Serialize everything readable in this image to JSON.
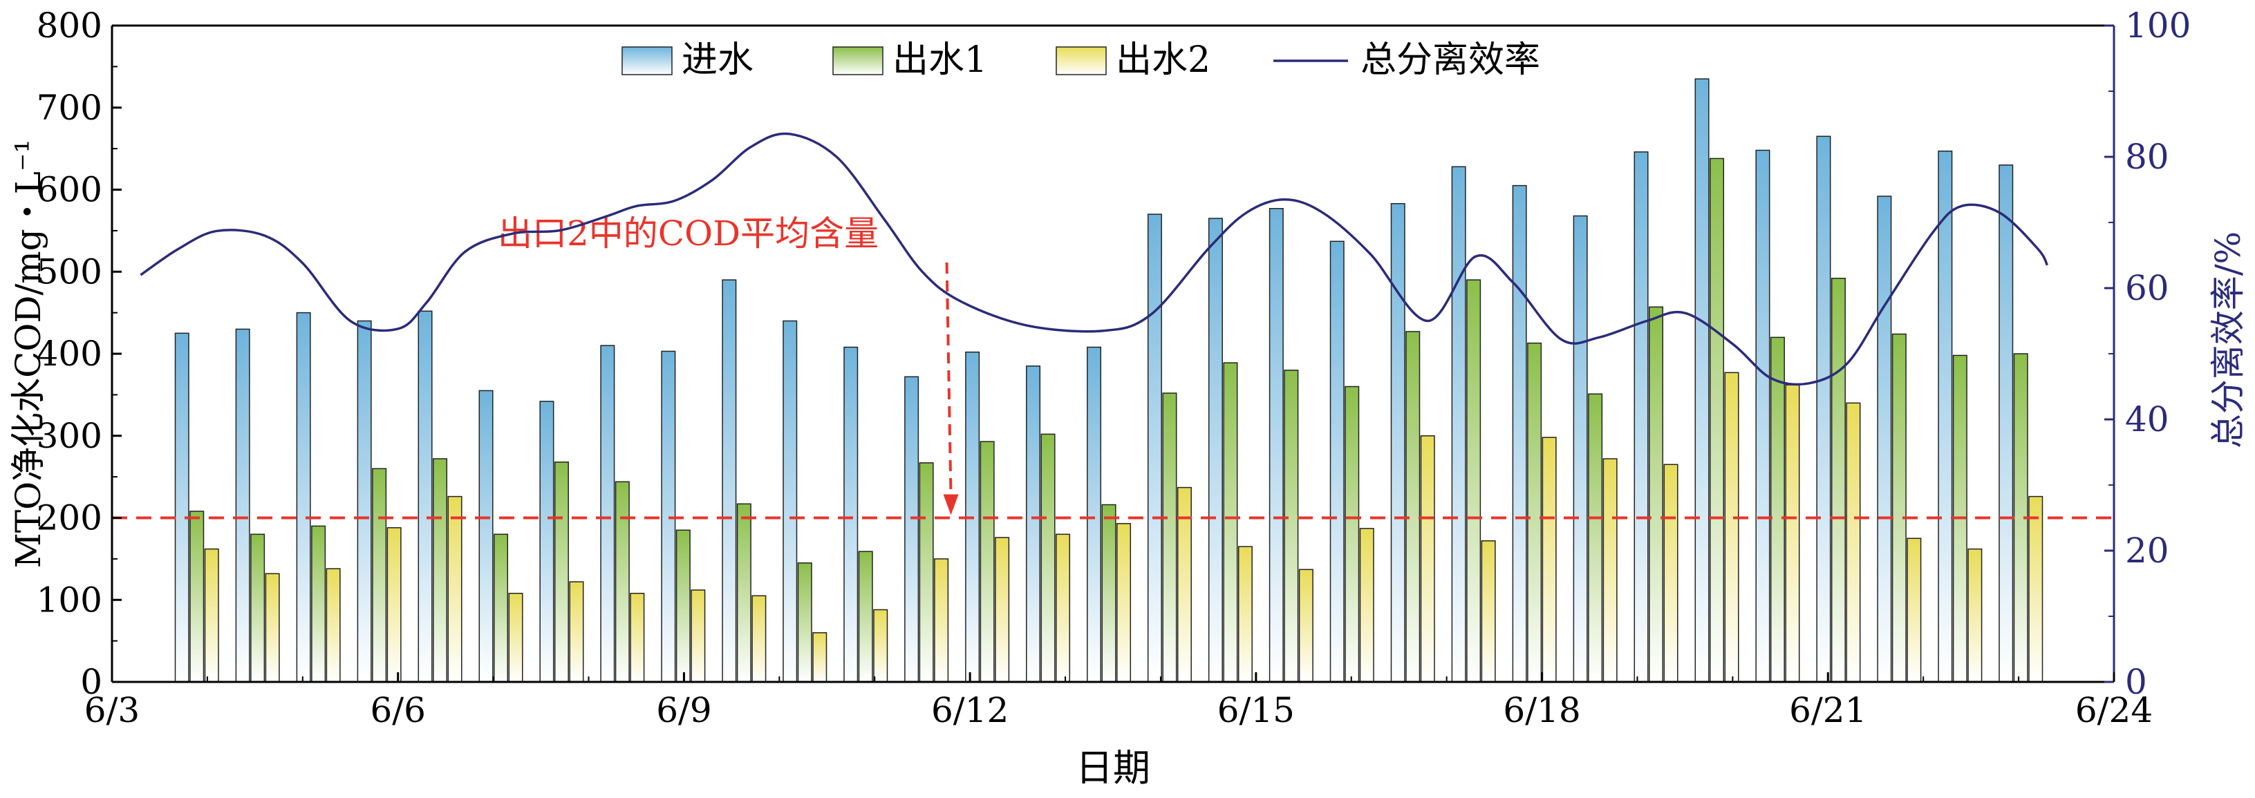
{
  "chart_data": {
    "type": "bar",
    "x_tick_labels": [
      "6/3",
      "6/6",
      "6/9",
      "6/12",
      "6/15",
      "6/18",
      "6/21",
      "6/24"
    ],
    "xlabel": "日期",
    "ylabel_left": "MTO净化水COD/mg・L⁻¹",
    "ylabel_right": "总分离效率/%",
    "ylim_left": [
      0,
      800
    ],
    "yticks_left": [
      "0",
      "100",
      "200",
      "300",
      "400",
      "500",
      "600",
      "700",
      "800"
    ],
    "ylim_right": [
      0,
      100
    ],
    "yticks_right": [
      "0",
      "20",
      "40",
      "60",
      "80",
      "100"
    ],
    "grid": false,
    "legend_position": "top",
    "series": [
      {
        "name": "进水",
        "color_top": "#6fb4dc",
        "color_bottom": "#ffffff",
        "values": [
          425,
          430,
          450,
          440,
          452,
          355,
          342,
          410,
          403,
          490,
          440,
          408,
          372,
          402,
          385,
          408,
          570,
          565,
          577,
          537,
          583,
          628,
          605,
          568,
          646,
          735,
          648,
          665,
          592,
          647,
          630
        ]
      },
      {
        "name": "出水1",
        "color_top": "#8cbf4a",
        "color_bottom": "#ffffff",
        "values": [
          208,
          180,
          190,
          260,
          272,
          180,
          268,
          244,
          185,
          217,
          145,
          159,
          267,
          293,
          302,
          216,
          352,
          389,
          380,
          360,
          427,
          490,
          413,
          351,
          457,
          638,
          420,
          492,
          424,
          398,
          400
        ]
      },
      {
        "name": "出水2",
        "color_top": "#e9dc58",
        "color_bottom": "#ffffff",
        "values": [
          162,
          132,
          138,
          188,
          226,
          108,
          122,
          108,
          112,
          105,
          60,
          88,
          150,
          176,
          180,
          193,
          237,
          165,
          137,
          187,
          300,
          172,
          298,
          272,
          265,
          377,
          362,
          340,
          175,
          162,
          226
        ]
      },
      {
        "name": "总分离效率",
        "type": "line",
        "axis": "right",
        "color": "#2b2b7a",
        "x": [
          3.3,
          3.7,
          4.1,
          4.6,
          5.0,
          5.5,
          6.0,
          6.3,
          6.7,
          7.2,
          7.7,
          8.2,
          8.5,
          8.9,
          9.3,
          9.7,
          10.1,
          10.6,
          11.1,
          11.5,
          11.9,
          12.6,
          13.4,
          13.9,
          14.5,
          14.9,
          15.3,
          15.7,
          16.2,
          16.8,
          17.3,
          17.7,
          18.2,
          18.6,
          19.1,
          19.5,
          20.0,
          20.4,
          20.8,
          21.2,
          21.6,
          22.1,
          22.4,
          22.8,
          23.2,
          23.3
        ],
        "values": [
          62,
          66,
          68.7,
          68,
          63.8,
          55,
          53.8,
          57.8,
          65.5,
          68.3,
          68.8,
          71,
          72.5,
          73.3,
          76.5,
          81.5,
          83.5,
          80,
          70.5,
          62.5,
          58,
          54.3,
          53.5,
          56,
          66,
          71.5,
          73.5,
          71.5,
          65.2,
          55,
          64.8,
          60.8,
          52.2,
          52.5,
          55,
          56.2,
          51.5,
          46.3,
          45.5,
          48.5,
          57.5,
          68.5,
          72.5,
          71.5,
          66,
          63.5
        ]
      }
    ],
    "reference_line": {
      "axis": "left",
      "y": 200,
      "color": "#e8352b",
      "label": "出口2中的COD平均含量",
      "arrow_x": 11.8
    }
  }
}
